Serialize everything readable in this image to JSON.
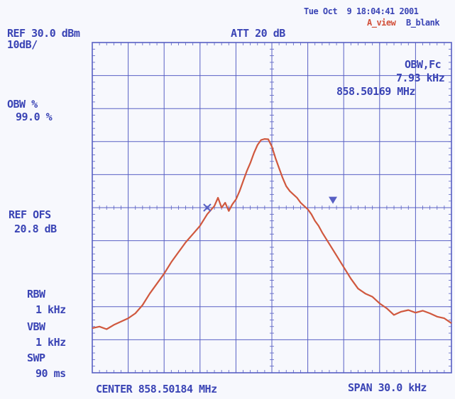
{
  "header": {
    "timestamp": "Tue Oct  9 18:04:41 2001",
    "trace_a": "A_view",
    "trace_b": "B_blank",
    "ref_level": "REF 30.0 dBm",
    "scale": "10dB/",
    "attenuation": "ATT 20 dB"
  },
  "left_panel": {
    "obw_label": "OBW %",
    "obw_value": "99.0 %",
    "ref_ofs_label": "REF OFS",
    "ref_ofs_value": "20.8 dB",
    "rbw_label": "RBW",
    "rbw_value": "1 kHz",
    "vbw_label": "VBW",
    "vbw_value": "1 kHz",
    "swp_label": "SWP",
    "swp_value": "90 ms"
  },
  "readout": {
    "label": "OBW,Fc",
    "bandwidth": "7.93 kHz",
    "center": "858.50169 MHz"
  },
  "footer": {
    "center": "CENTER 858.50184 MHz",
    "span": "SPAN 30.0 kHz"
  },
  "colors": {
    "grid": "#5860c4",
    "trace": "#d0583e",
    "text": "#3a44b5",
    "background": "#f7f8fd"
  },
  "chart_data": {
    "type": "line",
    "title": "",
    "xlabel": "",
    "ylabel": "",
    "x_unit": "kHz offset from center",
    "y_unit": "dBm",
    "xlim": [
      -15,
      15
    ],
    "ylim": [
      -70,
      30
    ],
    "grid": true,
    "series": [
      {
        "x": [
          -15.0,
          -14.4,
          -13.8,
          -13.2,
          -12.6,
          -12.0,
          -11.4,
          -10.8,
          -10.2,
          -9.6,
          -9.0,
          -8.4,
          -7.8,
          -7.2,
          -6.6,
          -6.0,
          -5.4,
          -4.8,
          -4.5,
          -4.2,
          -3.9,
          -3.6,
          -3.3,
          -3.0,
          -2.7,
          -2.4,
          -2.1,
          -1.8,
          -1.5,
          -1.2,
          -0.9,
          -0.6,
          -0.3,
          0.0,
          0.3,
          0.6,
          0.9,
          1.2,
          1.5,
          1.8,
          2.1,
          2.4,
          2.7,
          3.0,
          3.3,
          3.6,
          3.9,
          4.2,
          4.8,
          5.4,
          6.0,
          6.6,
          7.2,
          7.8,
          8.4,
          9.0,
          9.6,
          10.2,
          10.8,
          11.4,
          12.0,
          12.6,
          13.2,
          13.8,
          14.4,
          15.0
        ],
        "y": [
          -56.5,
          -56.0,
          -56.8,
          -55.5,
          -54.5,
          -53.5,
          -52.0,
          -49.5,
          -46.0,
          -43.0,
          -40.0,
          -36.5,
          -33.5,
          -30.5,
          -28.0,
          -25.5,
          -22.0,
          -19.5,
          -17.0,
          -20.0,
          -18.5,
          -21.0,
          -19.0,
          -17.5,
          -15.0,
          -12.0,
          -9.0,
          -6.5,
          -3.5,
          -1.0,
          0.5,
          0.8,
          0.7,
          -1.5,
          -5.0,
          -8.0,
          -11.0,
          -13.5,
          -15.0,
          -16.0,
          -17.0,
          -18.5,
          -19.5,
          -20.5,
          -22.0,
          -24.0,
          -25.5,
          -27.5,
          -31.0,
          -34.5,
          -38.0,
          -41.5,
          -44.5,
          -46.0,
          -47.0,
          -49.0,
          -50.5,
          -52.5,
          -51.5,
          -51.0,
          -51.8,
          -51.2,
          -52.0,
          -53.0,
          -53.5,
          -55.0
        ]
      }
    ],
    "markers": [
      {
        "symbol": "x",
        "x": -5.4,
        "y": -20.0
      },
      {
        "symbol": "triangle-down",
        "x": 5.1,
        "y": -18.0
      }
    ]
  }
}
